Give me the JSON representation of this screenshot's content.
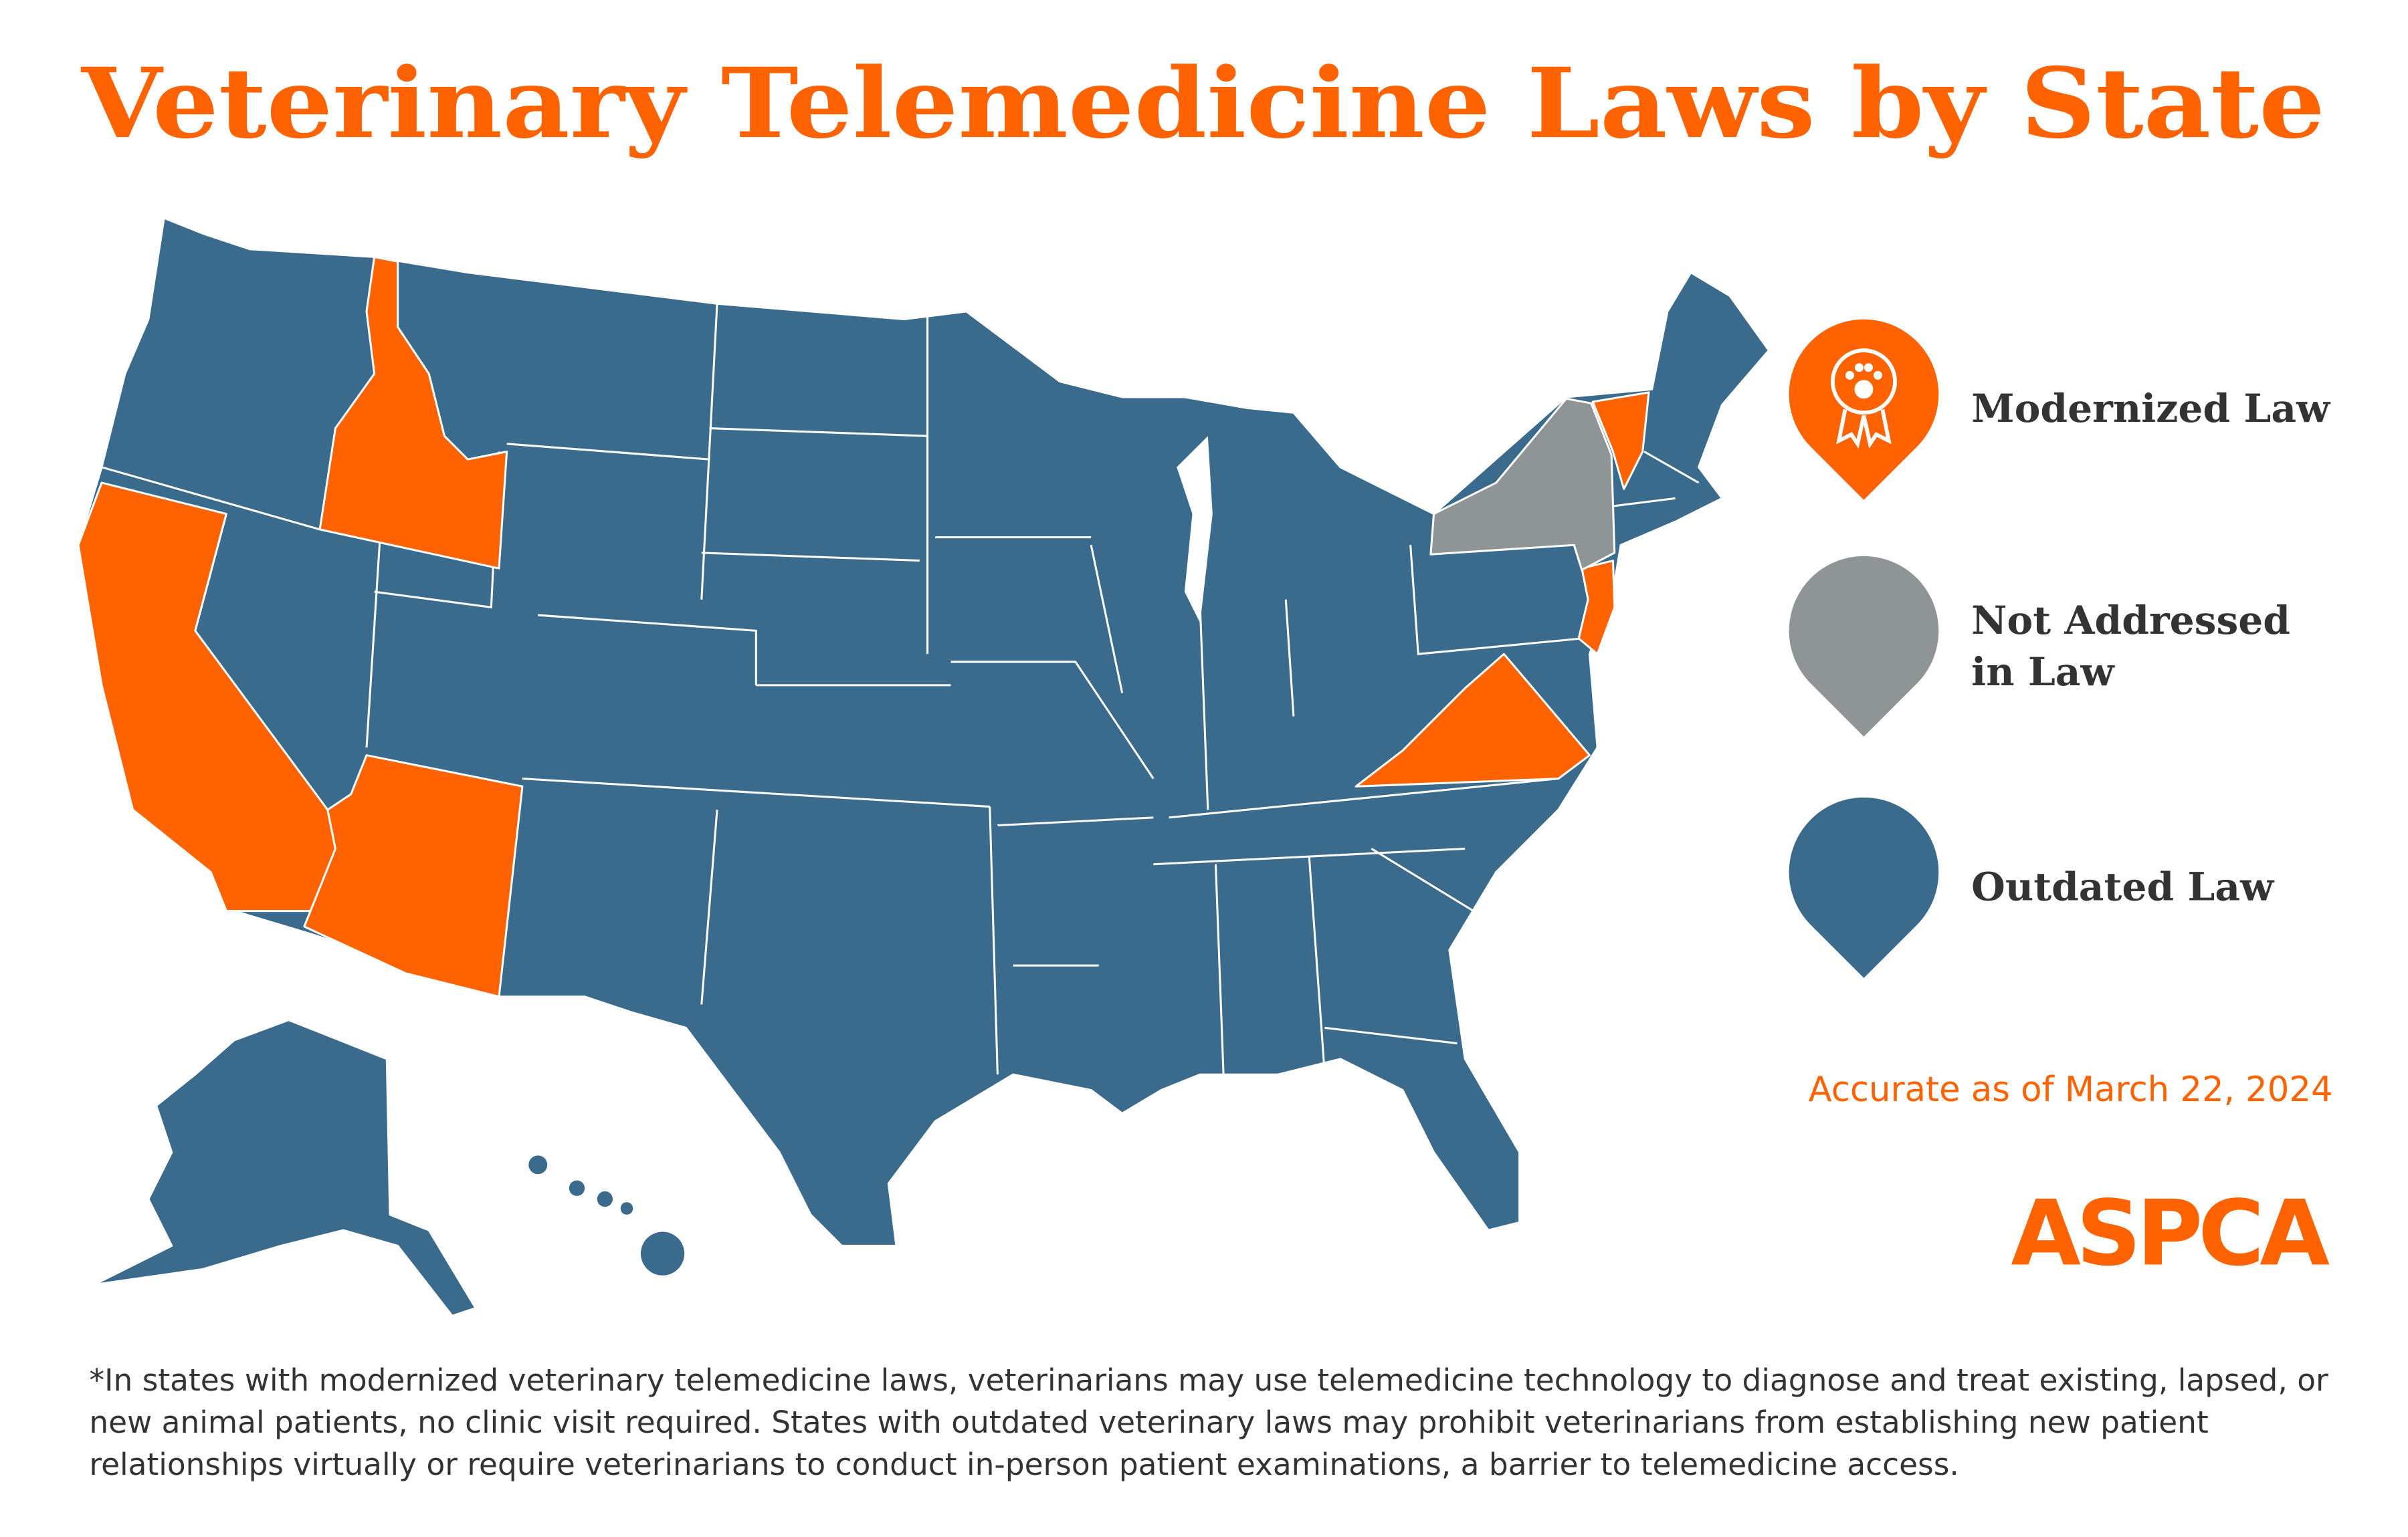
{
  "title": "Veterinary Telemedicine Laws by State",
  "legend": [
    {
      "label": [
        "Modernized Law"
      ],
      "color": "#ff6200"
    },
    {
      "label": [
        "Not Addressed",
        "in Law"
      ],
      "color": "#8f9496"
    },
    {
      "label": [
        "Outdated Law"
      ],
      "color": "#3a6a8c"
    }
  ],
  "accuracy_note": "Accurate as of March 22, 2024",
  "logo": "ASPCA",
  "footnote": [
    "*In states with modernized veterinary telemedicine laws, veterinarians may use telemedicine technology to diagnose and treat existing, lapsed, or",
    "new animal patients, no clinic visit required. States with outdated veterinary laws may prohibit veterinarians from establishing new patient",
    "relationships virtually or require veterinarians to conduct in-person patient examinations, a barrier to telemedicine access."
  ]
}
